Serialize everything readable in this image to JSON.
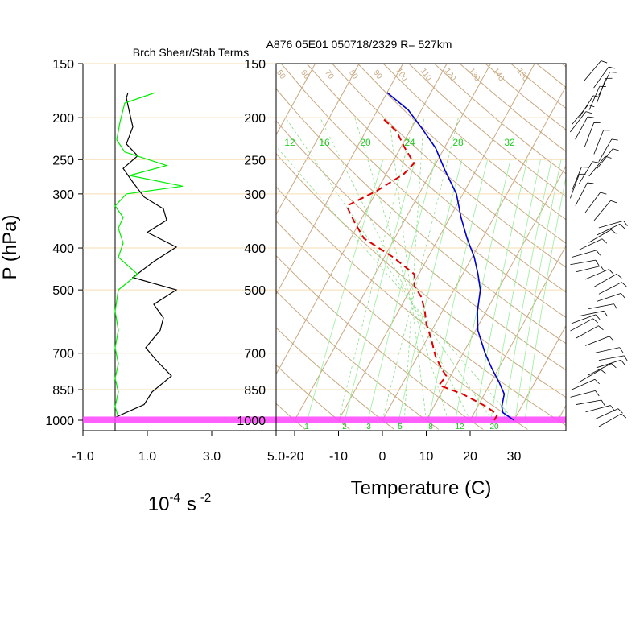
{
  "chart_data": [
    {
      "type": "line",
      "title": "Brch Shear/Stab Terms",
      "xlabel_base": "10",
      "xlabel_exp": "-4",
      "xlabel_unit": "s",
      "xlabel_unit_exp": "-2",
      "ylabel": "P (hPa)",
      "y_scale": "log",
      "ylim": [
        1000,
        150
      ],
      "xlim": [
        -1.0,
        5.0
      ],
      "x_ticks": [
        "-1.0",
        "1.0",
        "3.0",
        "5.0"
      ],
      "y_ticks": [
        "150",
        "200",
        "250",
        "300",
        "400",
        "500",
        "700",
        "850",
        "1000"
      ],
      "grid": "horizontal pressure lines",
      "series": [
        {
          "color": "#000000",
          "points": [
            [
              0.4,
              175
            ],
            [
              0.35,
              180
            ],
            [
              0.45,
              195
            ],
            [
              0.55,
              210
            ],
            [
              0.35,
              230
            ],
            [
              0.7,
              245
            ],
            [
              0.25,
              262
            ],
            [
              0.55,
              282
            ],
            [
              0.9,
              305
            ],
            [
              1.5,
              325
            ],
            [
              1.6,
              345
            ],
            [
              1.0,
              368
            ],
            [
              1.9,
              398
            ],
            [
              1.2,
              430
            ],
            [
              0.55,
              468
            ],
            [
              1.9,
              500
            ],
            [
              1.2,
              540
            ],
            [
              1.5,
              580
            ],
            [
              1.4,
              620
            ],
            [
              0.95,
              680
            ],
            [
              1.3,
              730
            ],
            [
              1.75,
              790
            ],
            [
              1.15,
              860
            ],
            [
              0.9,
              920
            ],
            [
              0.0,
              985
            ]
          ]
        },
        {
          "color": "#00ee00",
          "points": [
            [
              1.25,
              175
            ],
            [
              0.3,
              185
            ],
            [
              0.15,
              205
            ],
            [
              0.05,
              225
            ],
            [
              0.3,
              240
            ],
            [
              1.6,
              258
            ],
            [
              0.45,
              272
            ],
            [
              2.1,
              288
            ],
            [
              0.35,
              300
            ],
            [
              0.0,
              320
            ],
            [
              0.25,
              340
            ],
            [
              0.1,
              360
            ],
            [
              0.25,
              390
            ],
            [
              0.1,
              420
            ],
            [
              0.7,
              460
            ],
            [
              0.1,
              500
            ],
            [
              0.0,
              560
            ],
            [
              0.1,
              620
            ],
            [
              0.0,
              680
            ],
            [
              0.1,
              740
            ],
            [
              0.0,
              800
            ],
            [
              0.1,
              860
            ],
            [
              0.0,
              930
            ],
            [
              0.1,
              985
            ]
          ]
        }
      ]
    },
    {
      "type": "line",
      "title": "A876 05E01 050718/2329 R= 527km",
      "xlabel": "Temperature (C)",
      "y_scale": "log",
      "ylim": [
        1000,
        150
      ],
      "xlim": [
        -25,
        40
      ],
      "x_ticks": [
        "-20",
        "-10",
        "0",
        "10",
        "20",
        "30"
      ],
      "y_ticks": [
        "150",
        "200",
        "250",
        "300",
        "400",
        "500",
        "700",
        "850",
        "1000"
      ],
      "skew": "skew-T",
      "grid": "isotherms, dry adiabats, moist adiabats, mixing ratio lines",
      "mixing_ratio_labels": [
        "12",
        "16",
        "20",
        "24",
        "28",
        "32"
      ],
      "lower_mixing_labels": [
        "1",
        "2",
        "3",
        "5",
        "8",
        "12",
        "20"
      ],
      "adiabat_labels": [
        "50",
        "60",
        "70",
        "80",
        "90",
        "100",
        "110",
        "120",
        "130",
        "140",
        "150"
      ],
      "highlight_layer": {
        "from": 985,
        "to": 1000,
        "color": "#ff44ff"
      },
      "series": [
        {
          "name": "Temperature",
          "color": "#0000cc",
          "style": "solid",
          "points": [
            [
              30.0,
              1000
            ],
            [
              26.5,
              960
            ],
            [
              25.5,
              930
            ],
            [
              24.5,
              870
            ],
            [
              22.0,
              820
            ],
            [
              18.5,
              760
            ],
            [
              15.0,
              700
            ],
            [
              10.5,
              620
            ],
            [
              8.0,
              560
            ],
            [
              6.0,
              500
            ],
            [
              3.5,
              460
            ],
            [
              0.5,
              420
            ],
            [
              -3.5,
              380
            ],
            [
              -7.5,
              340
            ],
            [
              -11.5,
              300
            ],
            [
              -17.0,
              265
            ],
            [
              -22.0,
              235
            ],
            [
              -28.0,
              210
            ],
            [
              -33.0,
              192
            ],
            [
              -40.0,
              175
            ]
          ]
        },
        {
          "name": "Dewpoint",
          "color": "#dd0000",
          "style": "dashed",
          "points": [
            [
              25.5,
              1000
            ],
            [
              25.5,
              970
            ],
            [
              22.0,
              930
            ],
            [
              15.0,
              870
            ],
            [
              8.5,
              830
            ],
            [
              9.0,
              790
            ],
            [
              7.0,
              760
            ],
            [
              4.0,
              710
            ],
            [
              1.0,
              650
            ],
            [
              -2.0,
              600
            ],
            [
              -4.0,
              560
            ],
            [
              -6.5,
              520
            ],
            [
              -9.5,
              490
            ],
            [
              -11.0,
              460
            ],
            [
              -18.0,
              420
            ],
            [
              -27.0,
              380
            ],
            [
              -31.0,
              350
            ],
            [
              -35.0,
              320
            ],
            [
              -30.0,
              295
            ],
            [
              -26.0,
              270
            ],
            [
              -25.0,
              255
            ],
            [
              -29.0,
              235
            ],
            [
              -33.0,
              215
            ],
            [
              -38.0,
              200
            ]
          ]
        }
      ]
    }
  ],
  "wind_barbs": {
    "color": "#000000",
    "count": 48
  }
}
